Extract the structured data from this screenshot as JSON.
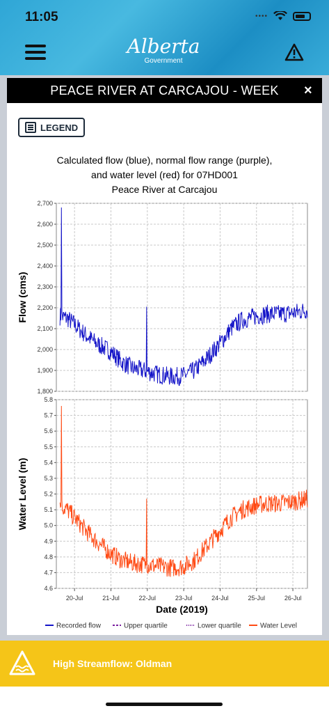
{
  "status_bar": {
    "time": "11:05"
  },
  "header": {
    "logo_text": "Alberta",
    "logo_sub": "Government"
  },
  "modal": {
    "title": "PEACE RIVER AT CARCAJOU - WEEK",
    "close_label": "×",
    "legend_button_label": "LEGEND"
  },
  "chart_title_lines": [
    "Calculated flow (blue), normal flow range (purple),",
    "and water level (red) for 07HD001",
    "Peace River at Carcajou"
  ],
  "chart_data": [
    {
      "type": "line",
      "ylabel": "Flow (cms)",
      "ylim": [
        1800,
        2700
      ],
      "yticks": [
        "1,800",
        "1,900",
        "2,000",
        "2,100",
        "2,200",
        "2,300",
        "2,400",
        "2,500",
        "2,600",
        "2,700"
      ],
      "grid": true,
      "series": [
        {
          "name": "Recorded flow",
          "color": "#1414c8",
          "x": [
            19.6,
            19.8,
            20.0,
            20.3,
            20.6,
            21.0,
            21.3,
            21.6,
            22.0,
            22.3,
            22.7,
            23.0,
            23.3,
            23.6,
            24.0,
            24.3,
            24.6,
            25.0,
            25.3,
            25.6,
            26.0,
            26.4
          ],
          "y": [
            2160,
            2150,
            2120,
            2070,
            2030,
            1990,
            1940,
            1910,
            1895,
            1880,
            1870,
            1875,
            1900,
            1950,
            2030,
            2100,
            2140,
            2160,
            2170,
            2170,
            2175,
            2190
          ]
        }
      ]
    },
    {
      "type": "line",
      "ylabel": "Water Level (m)",
      "xlabel": "Date (2019)",
      "ylim": [
        4.6,
        5.8
      ],
      "yticks": [
        "4.6",
        "4.7",
        "4.8",
        "4.9",
        "5.0",
        "5.1",
        "5.2",
        "5.3",
        "5.4",
        "5.5",
        "5.6",
        "5.7",
        "5.8"
      ],
      "xticks": [
        "20-Jul",
        "21-Jul",
        "22-Jul",
        "23-Jul",
        "24-Jul",
        "25-Jul",
        "26-Jul"
      ],
      "xlim": [
        19.5,
        26.4
      ],
      "grid": true,
      "series": [
        {
          "name": "Water Level",
          "color": "#ff4a14",
          "x": [
            19.6,
            19.8,
            20.0,
            20.3,
            20.6,
            21.0,
            21.3,
            21.6,
            22.0,
            22.3,
            22.7,
            23.0,
            23.3,
            23.6,
            24.0,
            24.3,
            24.6,
            25.0,
            25.3,
            25.6,
            26.0,
            26.4
          ],
          "y": [
            5.13,
            5.1,
            5.05,
            4.97,
            4.9,
            4.82,
            4.78,
            4.76,
            4.75,
            4.74,
            4.73,
            4.74,
            4.78,
            4.86,
            4.97,
            5.05,
            5.1,
            5.13,
            5.14,
            5.14,
            5.15,
            5.17
          ]
        }
      ]
    }
  ],
  "legend_entries": [
    {
      "label": "Recorded flow",
      "color": "#1414c8",
      "style": "solid"
    },
    {
      "label": "Upper quartile",
      "color": "#7a1fa0",
      "style": "dashed"
    },
    {
      "label": "Lower quartile",
      "color": "#7a1fa0",
      "style": "dotted"
    },
    {
      "label": "Water Level",
      "color": "#ff4a14",
      "style": "solid"
    }
  ],
  "banner": {
    "text": "High Streamflow:  Oldman",
    "color": "#f5c518"
  }
}
